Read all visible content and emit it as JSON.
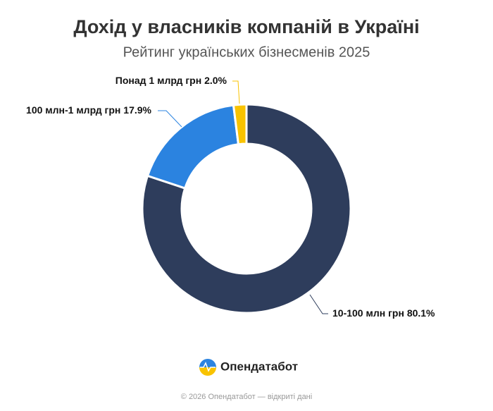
{
  "chart_data": {
    "type": "donut",
    "title": "Дохід у власників компаній в Україні",
    "subtitle": "Рейтинг українських бізнесменів 2025",
    "categories": [
      "10-100 млн грн",
      "100 млн-1 млрд грн",
      "Понад 1 млрд грн"
    ],
    "values": [
      80.1,
      17.9,
      2.0
    ],
    "value_labels": [
      "80.1%",
      "17.9%",
      "2.0%"
    ],
    "colors": [
      "#2e3d5c",
      "#2b83e0",
      "#f9c300"
    ]
  },
  "footer": {
    "brand": "Опендатабот",
    "copyright": "© 2026 Опендатабот — відкриті дані"
  }
}
